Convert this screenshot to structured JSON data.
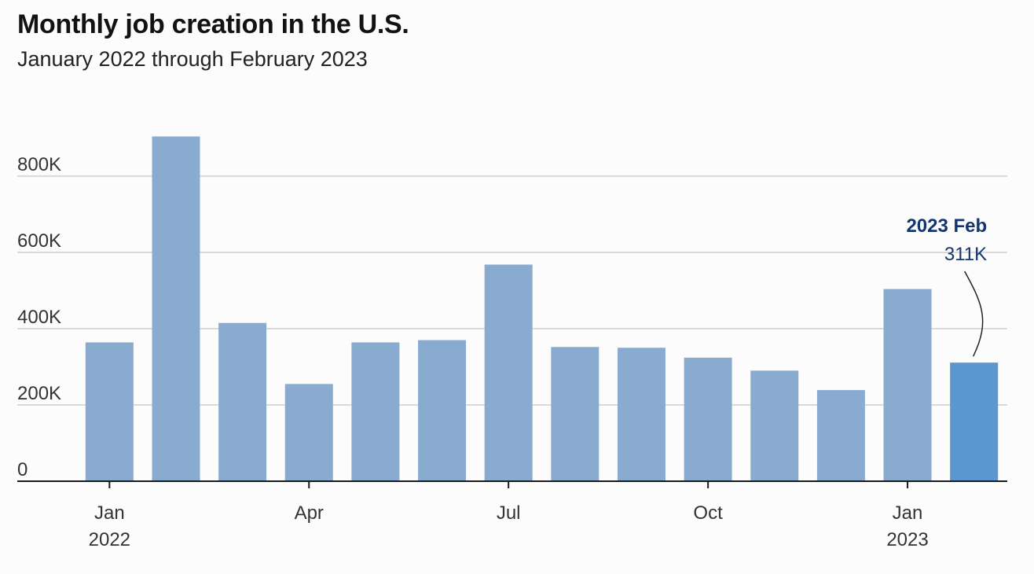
{
  "title": "Monthly job creation in the U.S.",
  "subtitle": "January 2022 through February 2023",
  "chart_data": {
    "type": "bar",
    "categories": [
      "2022-01",
      "2022-02",
      "2022-03",
      "2022-04",
      "2022-05",
      "2022-06",
      "2022-07",
      "2022-08",
      "2022-09",
      "2022-10",
      "2022-11",
      "2022-12",
      "2023-01",
      "2023-02"
    ],
    "values": [
      364000,
      904000,
      415000,
      255000,
      364000,
      370000,
      568000,
      352000,
      350000,
      324000,
      290000,
      239000,
      504000,
      311000
    ],
    "ylim": [
      0,
      900000
    ],
    "y_ticks": [
      {
        "value": 0,
        "label": "0"
      },
      {
        "value": 200000,
        "label": "200K"
      },
      {
        "value": 400000,
        "label": "400K"
      },
      {
        "value": 600000,
        "label": "600K"
      },
      {
        "value": 800000,
        "label": "800K"
      }
    ],
    "x_ticks": [
      {
        "index": 0,
        "label": "Jan",
        "sublabel": "2022"
      },
      {
        "index": 3,
        "label": "Apr",
        "sublabel": ""
      },
      {
        "index": 6,
        "label": "Jul",
        "sublabel": ""
      },
      {
        "index": 9,
        "label": "Oct",
        "sublabel": ""
      },
      {
        "index": 12,
        "label": "Jan",
        "sublabel": "2023"
      }
    ],
    "grid": true,
    "colors": {
      "bar": "#8aabd0",
      "highlight": "#5b97d1",
      "annotation": "#14356e"
    },
    "annotation": {
      "index": 13,
      "label": "2023 Feb",
      "value_label": "311K"
    }
  }
}
